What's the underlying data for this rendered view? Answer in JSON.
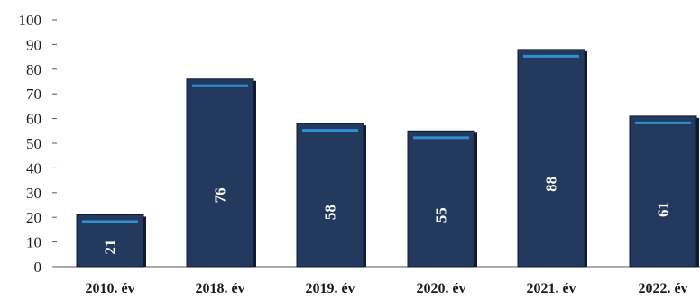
{
  "chart_data": {
    "type": "bar",
    "categories": [
      "2010. év",
      "2018. év",
      "2019. év",
      "2020. év",
      "2021. év",
      "2022. év"
    ],
    "values": [
      21,
      76,
      58,
      55,
      88,
      61
    ],
    "data_labels": [
      "21",
      "76",
      "58",
      "55",
      "88",
      "61"
    ],
    "yticks": [
      "0",
      "10",
      "20",
      "30",
      "40",
      "50",
      "60",
      "70",
      "80",
      "90",
      "100"
    ],
    "ylim": [
      0,
      100
    ],
    "grid": false,
    "legend": "none",
    "title": "",
    "xlabel": "",
    "ylabel": "",
    "colors": {
      "bar": "#233a5e",
      "bar_edge": "#0f1a33",
      "bar_highlight": "#2f8fd0",
      "axis": "#555555"
    }
  }
}
